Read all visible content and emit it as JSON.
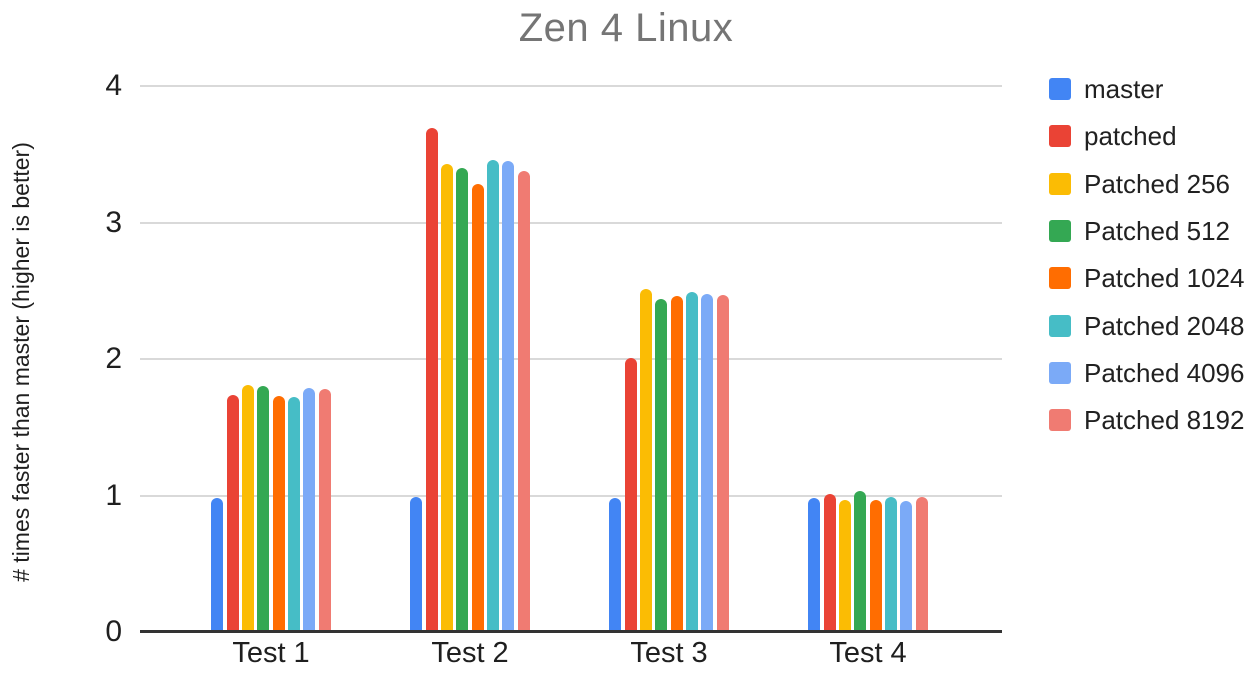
{
  "chart_data": {
    "type": "bar",
    "title": "Zen 4 Linux",
    "xlabel": "",
    "ylabel": "# times faster than master (higher is better)",
    "categories": [
      "Test 1",
      "Test 2",
      "Test 3",
      "Test 4"
    ],
    "series": [
      {
        "name": "master",
        "color": "#4285F4",
        "values": [
          0.98,
          0.99,
          0.98,
          0.98
        ]
      },
      {
        "name": "patched",
        "color": "#EA4335",
        "values": [
          1.74,
          3.69,
          2.01,
          1.01
        ]
      },
      {
        "name": "Patched 256",
        "color": "#FBBC04",
        "values": [
          1.81,
          3.43,
          2.51,
          0.97
        ]
      },
      {
        "name": "Patched 512",
        "color": "#34A853",
        "values": [
          1.8,
          3.4,
          2.44,
          1.03
        ]
      },
      {
        "name": "Patched 1024",
        "color": "#FF6D01",
        "values": [
          1.73,
          3.28,
          2.46,
          0.97
        ]
      },
      {
        "name": "Patched 2048",
        "color": "#46BDC6",
        "values": [
          1.72,
          3.46,
          2.49,
          0.99
        ]
      },
      {
        "name": "Patched 4096",
        "color": "#7BAAF7",
        "values": [
          1.79,
          3.45,
          2.48,
          0.96
        ]
      },
      {
        "name": "Patched 8192",
        "color": "#F07B72",
        "values": [
          1.78,
          3.38,
          2.47,
          0.99
        ]
      }
    ],
    "y_ticks": [
      0,
      1,
      2,
      3,
      4
    ],
    "ylim": [
      0,
      4
    ],
    "grid": true,
    "legend_position": "right",
    "colors": {
      "title_text": "#757575",
      "axis_text": "#1f1f1f",
      "gridline": "#d9d9d9",
      "axis_line": "#333333",
      "background": "#ffffff"
    }
  }
}
